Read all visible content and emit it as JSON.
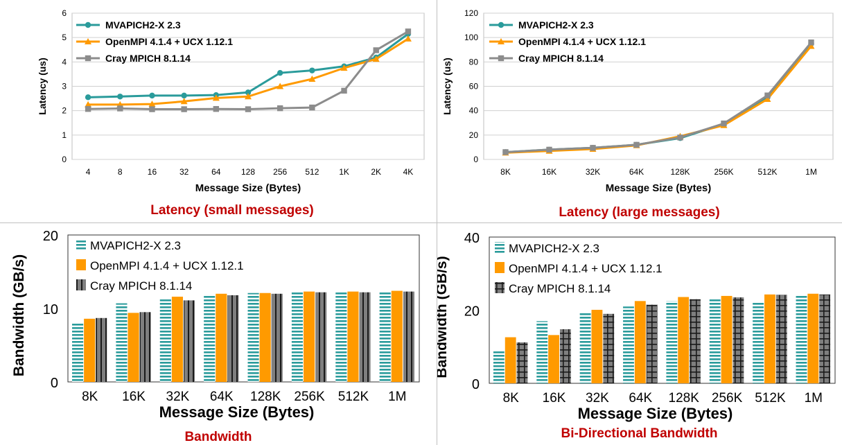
{
  "colors": {
    "mvapich": "#2a9b9b",
    "openmpi": "#ff9a00",
    "cray": "#8c8c8c",
    "caption": "#c00000"
  },
  "captions": [
    "Latency (small messages)",
    "Latency (large messages)",
    "Bandwidth",
    "Bi-Directional Bandwidth"
  ],
  "chart_data": [
    {
      "type": "line",
      "xlabel": "Message Size (Bytes)",
      "ylabel": "Latency (us)",
      "categories": [
        "4",
        "8",
        "16",
        "32",
        "64",
        "128",
        "256",
        "512",
        "1K",
        "2K",
        "4K"
      ],
      "ylim": [
        0,
        6
      ],
      "yticks": [
        0,
        1,
        2,
        3,
        4,
        5,
        6
      ],
      "legend": "top-left",
      "series": [
        {
          "name": "MVAPICH2-X 2.3",
          "marker": "circle",
          "values": [
            2.55,
            2.58,
            2.62,
            2.62,
            2.64,
            2.75,
            3.55,
            3.65,
            3.82,
            4.18,
            5.15
          ]
        },
        {
          "name": "OpenMPI 4.1.4 + UCX 1.12.1",
          "marker": "triangle",
          "values": [
            2.25,
            2.25,
            2.27,
            2.38,
            2.52,
            2.58,
            3.0,
            3.3,
            3.75,
            4.12,
            4.95
          ]
        },
        {
          "name": "Cray MPICH 8.1.14",
          "marker": "square",
          "values": [
            2.07,
            2.09,
            2.06,
            2.06,
            2.07,
            2.06,
            2.1,
            2.13,
            2.82,
            4.48,
            5.25
          ]
        }
      ]
    },
    {
      "type": "line",
      "xlabel": "Message Size (Bytes)",
      "ylabel": "Latency (us)",
      "categories": [
        "8K",
        "16K",
        "32K",
        "64K",
        "128K",
        "256K",
        "512K",
        "1M"
      ],
      "ylim": [
        0,
        120
      ],
      "yticks": [
        0,
        20,
        40,
        60,
        80,
        100,
        120
      ],
      "legend": "top-left",
      "series": [
        {
          "name": "MVAPICH2-X 2.3",
          "marker": "circle",
          "values": [
            6,
            8,
            9.5,
            12,
            17.5,
            29,
            51,
            95
          ]
        },
        {
          "name": "OpenMPI 4.1.4 + UCX 1.12.1",
          "marker": "triangle",
          "values": [
            5.5,
            7,
            8.5,
            11.5,
            19,
            28,
            49.5,
            93
          ]
        },
        {
          "name": "Cray MPICH 8.1.14",
          "marker": "square",
          "values": [
            6,
            8,
            9.5,
            12,
            18,
            29.5,
            52.5,
            96
          ]
        }
      ]
    },
    {
      "type": "bar",
      "xlabel": "Message Size (Bytes)",
      "ylabel": "Bandwidth (GB/s)",
      "categories": [
        "8K",
        "16K",
        "32K",
        "64K",
        "128K",
        "256K",
        "512K",
        "1M"
      ],
      "ylim": [
        0,
        20
      ],
      "yticks": [
        0,
        10,
        20
      ],
      "legend": "top-left",
      "series": [
        {
          "name": "MVAPICH2-X 2.3",
          "pattern": "hstripe",
          "values": [
            8.0,
            10.7,
            11.4,
            11.9,
            12.1,
            12.2,
            12.3,
            12.3
          ]
        },
        {
          "name": "OpenMPI 4.1.4 + UCX 1.12.1",
          "pattern": "solid",
          "values": [
            8.6,
            9.4,
            11.6,
            12.0,
            12.1,
            12.3,
            12.3,
            12.4
          ]
        },
        {
          "name": "Cray MPICH 8.1.14",
          "pattern": "vstripe",
          "values": [
            8.7,
            9.5,
            11.1,
            11.8,
            12.0,
            12.2,
            12.2,
            12.3
          ]
        }
      ]
    },
    {
      "type": "bar",
      "xlabel": "Message Size (Bytes)",
      "ylabel": "Bandwidth (GB/s)",
      "categories": [
        "8K",
        "16K",
        "32K",
        "64K",
        "128K",
        "256K",
        "512K",
        "1M"
      ],
      "ylim": [
        0,
        40
      ],
      "yticks": [
        0,
        20,
        40
      ],
      "legend": "top-left",
      "series": [
        {
          "name": "MVAPICH2-X 2.3",
          "pattern": "hstripe",
          "values": [
            8.8,
            17.0,
            19.5,
            21.0,
            22.5,
            23.3,
            22.3,
            24.0
          ]
        },
        {
          "name": "OpenMPI 4.1.4 + UCX 1.12.1",
          "pattern": "solid",
          "values": [
            12.6,
            13.2,
            20.1,
            22.5,
            23.6,
            23.9,
            24.3,
            24.5
          ]
        },
        {
          "name": "Cray MPICH 8.1.14",
          "pattern": "grid",
          "values": [
            11.2,
            14.8,
            19.0,
            21.5,
            23.0,
            23.5,
            24.2,
            24.3
          ]
        }
      ]
    }
  ]
}
